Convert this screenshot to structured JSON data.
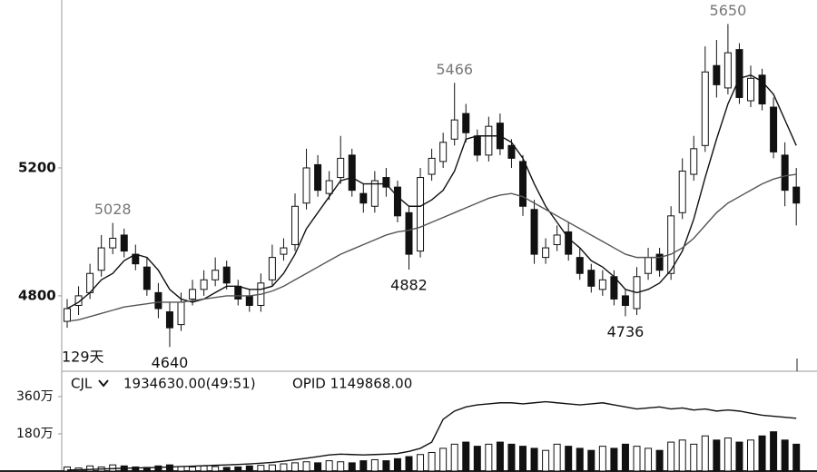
{
  "chart_data": [
    {
      "type": "candlestick",
      "open": [
        4720,
        4770,
        4810,
        4880,
        4950,
        4990,
        4930,
        4890,
        4810,
        4750,
        4710,
        4790,
        4820,
        4850,
        4890,
        4830,
        4800,
        4770,
        4850,
        4930,
        4960,
        5090,
        5210,
        5120,
        5170,
        5240,
        5120,
        5080,
        5170,
        5140,
        5060,
        4940,
        5180,
        5220,
        5290,
        5370,
        5300,
        5240,
        5340,
        5270,
        5220,
        5070,
        4920,
        4960,
        5000,
        4920,
        4880,
        4820,
        4860,
        4800,
        4760,
        4870,
        4930,
        4870,
        5060,
        5180,
        5270,
        5520,
        5450,
        5570,
        5410,
        5490,
        5390,
        5240,
        5140
      ],
      "high": [
        4790,
        4830,
        4900,
        4990,
        5028,
        5010,
        4960,
        4920,
        4840,
        4780,
        4810,
        4850,
        4880,
        4920,
        4910,
        4850,
        4820,
        4870,
        4960,
        4980,
        5120,
        5260,
        5240,
        5190,
        5300,
        5260,
        5150,
        5190,
        5200,
        5160,
        5080,
        5200,
        5260,
        5310,
        5466,
        5400,
        5320,
        5360,
        5370,
        5290,
        5240,
        5100,
        4980,
        5020,
        5030,
        4950,
        4900,
        4880,
        4880,
        4820,
        4890,
        4950,
        4950,
        5080,
        5230,
        5300,
        5580,
        5600,
        5650,
        5590,
        5520,
        5510,
        5420,
        5280,
        5200
      ],
      "low": [
        4700,
        4740,
        4790,
        4860,
        4930,
        4920,
        4880,
        4800,
        4730,
        4640,
        4690,
        4770,
        4800,
        4830,
        4820,
        4770,
        4750,
        4750,
        4830,
        4910,
        4940,
        5070,
        5110,
        5100,
        5150,
        5110,
        5060,
        5060,
        5110,
        5030,
        4882,
        4920,
        5160,
        5200,
        5270,
        5280,
        5220,
        5220,
        5240,
        5200,
        5050,
        4900,
        4900,
        4940,
        4910,
        4850,
        4810,
        4800,
        4770,
        4736,
        4740,
        4850,
        4860,
        4850,
        5040,
        5160,
        5250,
        5420,
        5430,
        5400,
        5390,
        5380,
        5230,
        5080,
        5020
      ],
      "close": [
        4760,
        4800,
        4870,
        4950,
        4980,
        4940,
        4900,
        4820,
        4760,
        4700,
        4780,
        4820,
        4850,
        4880,
        4840,
        4790,
        4770,
        4840,
        4920,
        4950,
        5080,
        5200,
        5130,
        5160,
        5230,
        5130,
        5090,
        5160,
        5140,
        5050,
        4930,
        5170,
        5230,
        5280,
        5350,
        5310,
        5240,
        5330,
        5260,
        5230,
        5080,
        4930,
        4950,
        4990,
        4930,
        4870,
        4830,
        4850,
        4790,
        4770,
        4860,
        4920,
        4880,
        5050,
        5190,
        5260,
        5500,
        5460,
        5560,
        5420,
        5480,
        5400,
        5250,
        5130,
        5090
      ],
      "lines": [
        {
          "color": "#111111",
          "values": [
            4760,
            4780,
            4810,
            4850,
            4870,
            4910,
            4930,
            4920,
            4880,
            4820,
            4790,
            4780,
            4790,
            4810,
            4830,
            4830,
            4820,
            4820,
            4830,
            4870,
            4930,
            5010,
            5060,
            5110,
            5160,
            5170,
            5150,
            5150,
            5150,
            5110,
            5080,
            5080,
            5100,
            5130,
            5190,
            5290,
            5300,
            5300,
            5300,
            5280,
            5230,
            5150,
            5080,
            5030,
            4980,
            4950,
            4910,
            4890,
            4860,
            4820,
            4810,
            4820,
            4840,
            4880,
            4940,
            5040,
            5170,
            5290,
            5400,
            5480,
            5490,
            5470,
            5430,
            5350,
            5270
          ]
        },
        {
          "color": "#555555",
          "values": [
            4720,
            4725,
            4735,
            4745,
            4755,
            4765,
            4770,
            4775,
            4780,
            4780,
            4780,
            4785,
            4790,
            4795,
            4800,
            4800,
            4800,
            4805,
            4815,
            4830,
            4850,
            4870,
            4890,
            4910,
            4930,
            4945,
            4960,
            4975,
            4990,
            5000,
            5005,
            5015,
            5030,
            5045,
            5060,
            5075,
            5090,
            5105,
            5115,
            5120,
            5110,
            5090,
            5070,
            5050,
            5030,
            5010,
            4990,
            4970,
            4950,
            4930,
            4920,
            4920,
            4920,
            4930,
            4950,
            4980,
            5020,
            5060,
            5090,
            5110,
            5130,
            5150,
            5165,
            5175,
            5180
          ]
        }
      ],
      "ylim": [
        4567,
        5725
      ],
      "yticks": [
        4800,
        5200
      ],
      "high_labels": [
        5028,
        5466,
        5650
      ],
      "low_labels": [
        4640,
        4882,
        4736
      ],
      "period_label": "129天"
    },
    {
      "type": "bar",
      "indicator": "CJL",
      "info": "1934630.00(49:51)",
      "opid_label": "OPID 1149868.00",
      "values": [
        20,
        15,
        25,
        20,
        30,
        25,
        20,
        18,
        25,
        30,
        22,
        20,
        25,
        22,
        18,
        20,
        25,
        28,
        30,
        35,
        40,
        45,
        40,
        50,
        45,
        40,
        50,
        55,
        50,
        60,
        70,
        80,
        90,
        110,
        130,
        140,
        120,
        130,
        140,
        130,
        120,
        110,
        100,
        130,
        120,
        110,
        100,
        120,
        110,
        130,
        120,
        110,
        100,
        140,
        150,
        130,
        170,
        150,
        160,
        140,
        150,
        170,
        190,
        150,
        130
      ],
      "line_values": [
        5,
        6,
        8,
        10,
        12,
        14,
        15,
        16,
        18,
        20,
        22,
        24,
        26,
        28,
        30,
        32,
        35,
        38,
        42,
        48,
        55,
        62,
        70,
        78,
        82,
        80,
        78,
        80,
        82,
        85,
        95,
        110,
        140,
        250,
        290,
        310,
        320,
        325,
        330,
        330,
        325,
        330,
        335,
        330,
        325,
        320,
        325,
        330,
        320,
        310,
        300,
        305,
        310,
        300,
        305,
        295,
        300,
        290,
        295,
        290,
        280,
        270,
        265,
        260,
        255
      ],
      "ylim": [
        0,
        478
      ],
      "yticks": [
        {
          "value": 360,
          "label": "360万"
        },
        {
          "value": 180,
          "label": "180万"
        }
      ]
    }
  ]
}
